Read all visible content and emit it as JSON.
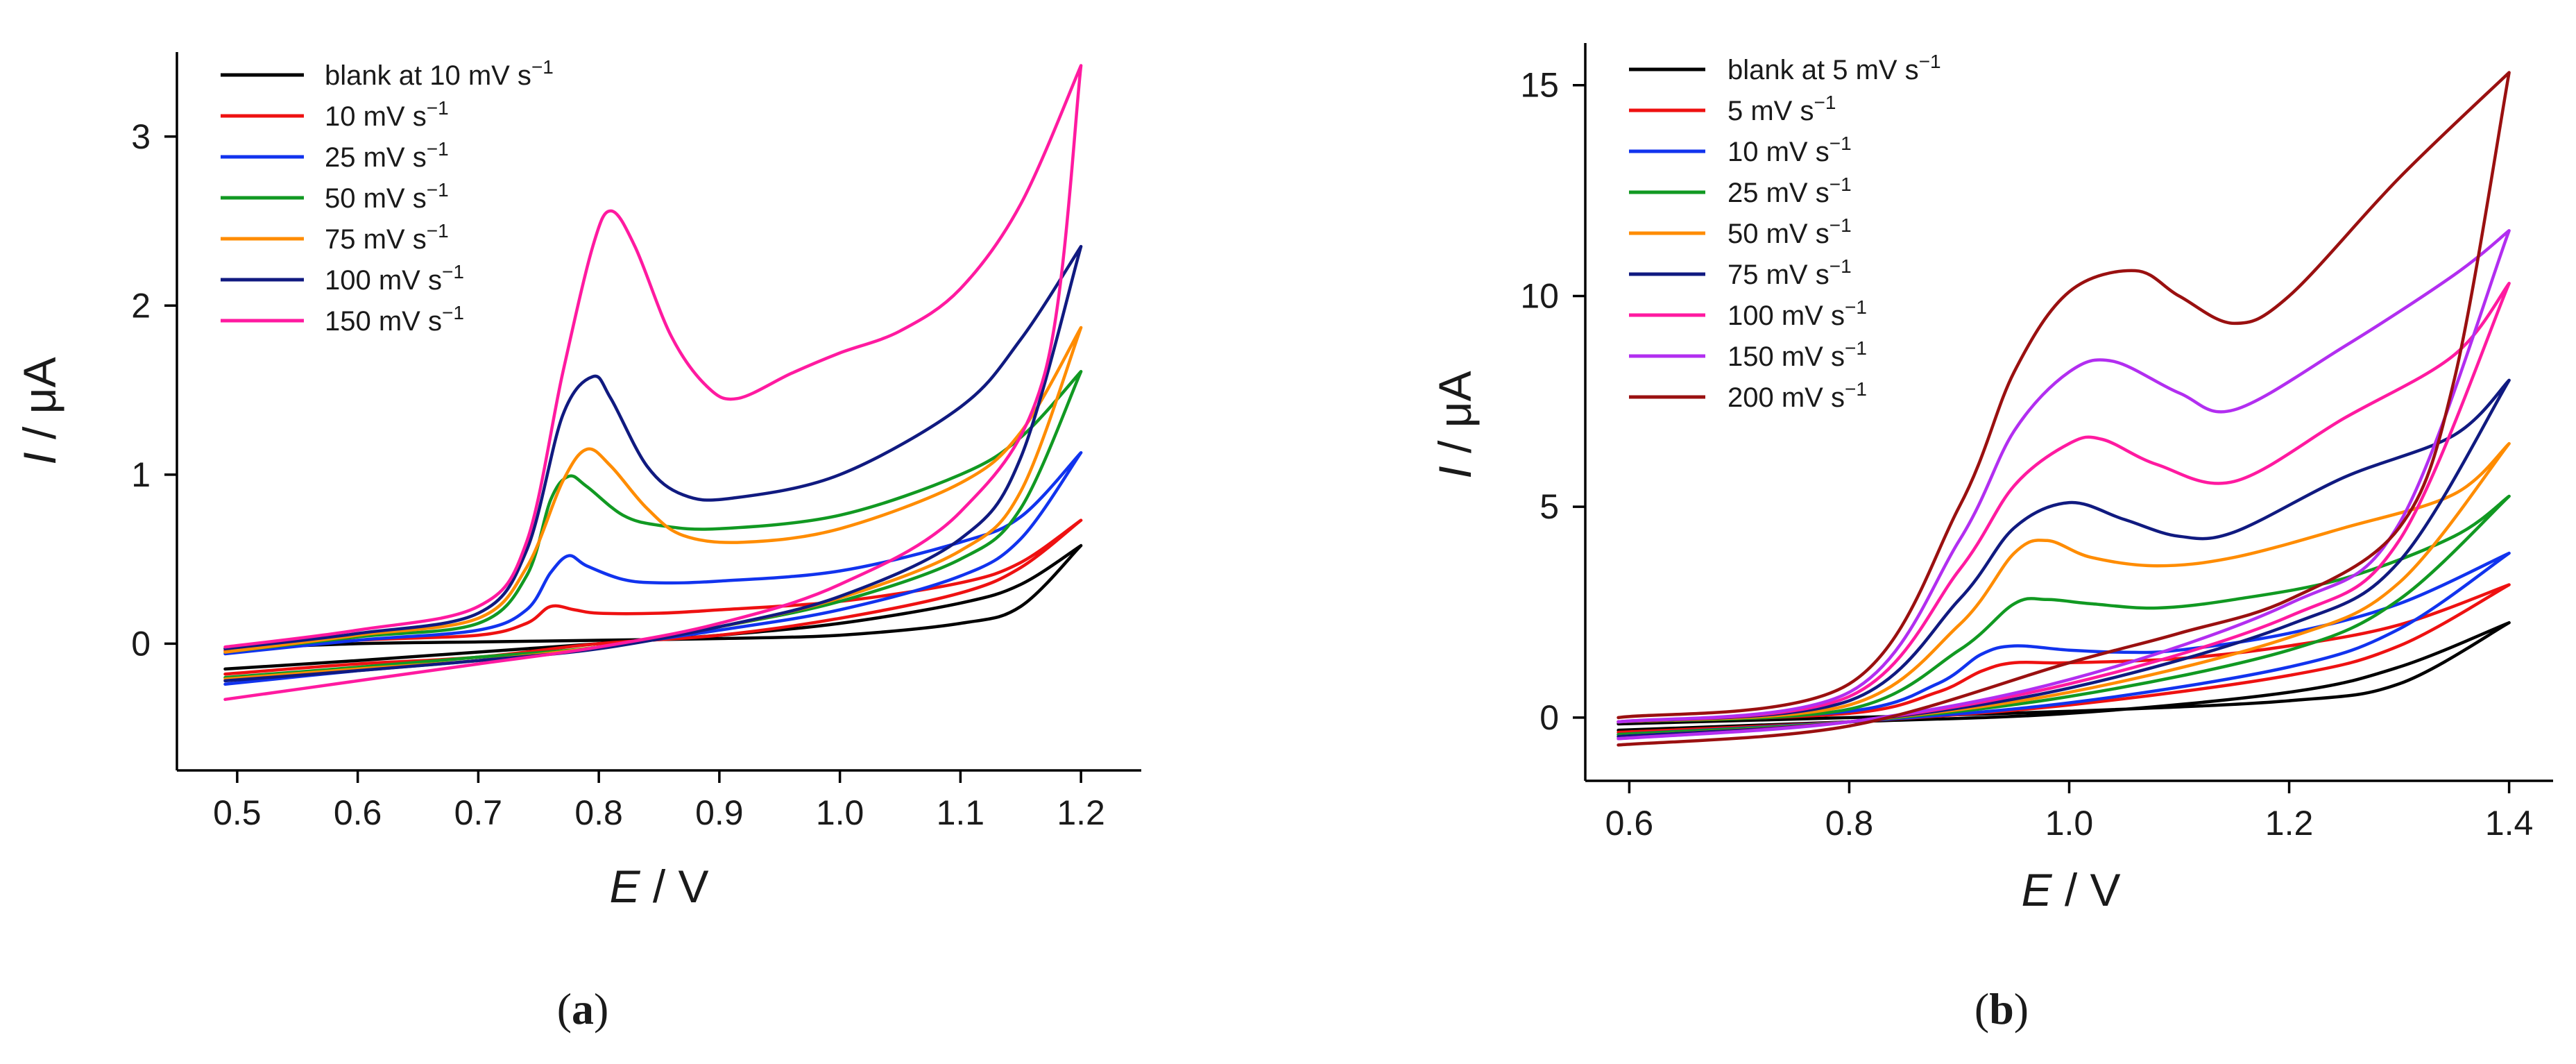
{
  "chart_data": [
    {
      "type": "line",
      "panel": "a",
      "panel_label": "a",
      "xlabel": "E",
      "xunit": "V",
      "ylabel": "I",
      "yunit": "μA",
      "xlim": [
        0.45,
        1.25
      ],
      "ylim": [
        -0.75,
        3.5
      ],
      "xticks": [
        0.5,
        0.6,
        0.7,
        0.8,
        0.9,
        1.0,
        1.1,
        1.2
      ],
      "xtick_labels": [
        "0.5",
        "0.6",
        "0.7",
        "0.8",
        "0.9",
        "1.0",
        "1.1",
        "1.2"
      ],
      "yticks": [
        0,
        1,
        2,
        3
      ],
      "ytick_labels": [
        "0",
        "1",
        "2",
        "3"
      ],
      "legend_position": "top-left",
      "series": [
        {
          "name": "blank at 10 mV s−1",
          "label_main": "blank at 10 mV s",
          "label_sup": "−1",
          "color": "#000000",
          "forward_x": [
            0.49,
            0.6,
            0.7,
            0.8,
            0.9,
            1.0,
            1.1,
            1.15,
            1.2
          ],
          "forward_y": [
            -0.03,
            0.0,
            0.01,
            0.02,
            0.03,
            0.05,
            0.12,
            0.22,
            0.58
          ],
          "reverse_x": [
            1.2,
            1.15,
            1.1,
            1.0,
            0.9,
            0.8,
            0.7,
            0.6,
            0.49
          ],
          "reverse_y": [
            0.58,
            0.35,
            0.24,
            0.12,
            0.05,
            0.0,
            -0.05,
            -0.1,
            -0.15
          ]
        },
        {
          "name": "10 mV s−1",
          "label_main": "10 mV s",
          "label_sup": "−1",
          "color": "#ee1111",
          "forward_x": [
            0.49,
            0.6,
            0.7,
            0.74,
            0.76,
            0.78,
            0.8,
            0.85,
            0.9,
            1.0,
            1.1,
            1.15,
            1.2
          ],
          "forward_y": [
            -0.04,
            0.02,
            0.05,
            0.12,
            0.22,
            0.2,
            0.18,
            0.18,
            0.2,
            0.25,
            0.36,
            0.48,
            0.73
          ],
          "reverse_x": [
            1.2,
            1.15,
            1.1,
            1.0,
            0.9,
            0.8,
            0.7,
            0.6,
            0.49
          ],
          "reverse_y": [
            0.73,
            0.45,
            0.3,
            0.15,
            0.05,
            0.0,
            -0.08,
            -0.12,
            -0.18
          ]
        },
        {
          "name": "25 mV s−1",
          "label_main": "25 mV s",
          "label_sup": "−1",
          "color": "#1133ee",
          "forward_x": [
            0.49,
            0.6,
            0.7,
            0.74,
            0.76,
            0.775,
            0.79,
            0.82,
            0.85,
            0.9,
            1.0,
            1.1,
            1.15,
            1.2
          ],
          "forward_y": [
            -0.06,
            0.02,
            0.08,
            0.2,
            0.42,
            0.52,
            0.46,
            0.38,
            0.36,
            0.37,
            0.43,
            0.6,
            0.75,
            1.13
          ],
          "reverse_x": [
            1.2,
            1.15,
            1.1,
            1.0,
            0.9,
            0.8,
            0.7,
            0.6,
            0.49
          ],
          "reverse_y": [
            1.13,
            0.62,
            0.4,
            0.2,
            0.08,
            -0.02,
            -0.1,
            -0.16,
            -0.24
          ]
        },
        {
          "name": "50 mV s−1",
          "label_main": "50 mV s",
          "label_sup": "−1",
          "color": "#119922",
          "forward_x": [
            0.49,
            0.6,
            0.7,
            0.74,
            0.76,
            0.775,
            0.79,
            0.82,
            0.85,
            0.9,
            1.0,
            1.1,
            1.15,
            1.2
          ],
          "forward_y": [
            -0.05,
            0.04,
            0.12,
            0.4,
            0.85,
            0.99,
            0.93,
            0.76,
            0.7,
            0.68,
            0.76,
            1.0,
            1.22,
            1.61
          ],
          "reverse_x": [
            1.2,
            1.15,
            1.1,
            1.0,
            0.9,
            0.8,
            0.7,
            0.6,
            0.49
          ],
          "reverse_y": [
            1.61,
            0.8,
            0.5,
            0.25,
            0.1,
            -0.02,
            -0.08,
            -0.14,
            -0.2
          ]
        },
        {
          "name": "75 mV s−1",
          "label_main": "75 mV s",
          "label_sup": "−1",
          "color": "#ff8c00",
          "forward_x": [
            0.49,
            0.6,
            0.7,
            0.74,
            0.77,
            0.79,
            0.81,
            0.84,
            0.87,
            0.92,
            1.0,
            1.1,
            1.15,
            1.2
          ],
          "forward_y": [
            -0.05,
            0.05,
            0.15,
            0.45,
            0.96,
            1.15,
            1.05,
            0.8,
            0.64,
            0.6,
            0.68,
            0.95,
            1.25,
            1.87
          ],
          "reverse_x": [
            1.2,
            1.15,
            1.1,
            1.0,
            0.9,
            0.8,
            0.7,
            0.6,
            0.49
          ],
          "reverse_y": [
            1.87,
            0.9,
            0.55,
            0.27,
            0.1,
            -0.02,
            -0.1,
            -0.15,
            -0.21
          ]
        },
        {
          "name": "100 mV s−1",
          "label_main": "100 mV s",
          "label_sup": "−1",
          "color": "#101a80",
          "forward_x": [
            0.49,
            0.6,
            0.7,
            0.74,
            0.77,
            0.795,
            0.81,
            0.84,
            0.87,
            0.91,
            1.0,
            1.1,
            1.15,
            1.2
          ],
          "forward_y": [
            -0.03,
            0.06,
            0.18,
            0.55,
            1.35,
            1.58,
            1.45,
            1.05,
            0.88,
            0.86,
            1.0,
            1.4,
            1.8,
            2.35
          ],
          "reverse_x": [
            1.2,
            1.15,
            1.1,
            1.0,
            0.9,
            0.8,
            0.7,
            0.6,
            0.49
          ],
          "reverse_y": [
            2.35,
            1.1,
            0.62,
            0.28,
            0.1,
            -0.03,
            -0.1,
            -0.16,
            -0.22
          ]
        },
        {
          "name": "150 mV s−1",
          "label_main": "150 mV s",
          "label_sup": "−1",
          "color": "#ff1aa0",
          "forward_x": [
            0.49,
            0.6,
            0.7,
            0.74,
            0.77,
            0.795,
            0.81,
            0.83,
            0.86,
            0.89,
            0.915,
            0.96,
            1.0,
            1.05,
            1.1,
            1.15,
            1.2
          ],
          "forward_y": [
            -0.02,
            0.08,
            0.22,
            0.6,
            1.6,
            2.35,
            2.56,
            2.35,
            1.82,
            1.52,
            1.45,
            1.6,
            1.72,
            1.85,
            2.1,
            2.6,
            3.42
          ],
          "reverse_x": [
            1.2,
            1.17,
            1.1,
            1.0,
            0.9,
            0.8,
            0.7,
            0.6,
            0.49
          ],
          "reverse_y": [
            3.42,
            1.6,
            0.78,
            0.35,
            0.12,
            -0.02,
            -0.12,
            -0.22,
            -0.33
          ]
        }
      ]
    },
    {
      "type": "line",
      "panel": "b",
      "panel_label": "b",
      "xlabel": "E",
      "xunit": "V",
      "ylabel": "I",
      "yunit": "μA",
      "xlim": [
        0.56,
        1.44
      ],
      "ylim": [
        -1.5,
        16
      ],
      "xticks": [
        0.6,
        0.8,
        1.0,
        1.2,
        1.4
      ],
      "xtick_labels": [
        "0.6",
        "0.8",
        "1.0",
        "1.2",
        "1.4"
      ],
      "yticks": [
        0,
        5,
        10,
        15
      ],
      "ytick_labels": [
        "0",
        "5",
        "10",
        "15"
      ],
      "legend_position": "top-left",
      "series": [
        {
          "name": "blank at 5 mV s−1",
          "label_main": "blank at 5 mV s",
          "label_sup": "−1",
          "color": "#000000",
          "forward_x": [
            0.59,
            0.8,
            1.0,
            1.2,
            1.3,
            1.4
          ],
          "forward_y": [
            -0.15,
            0.0,
            0.15,
            0.4,
            0.8,
            2.25
          ],
          "reverse_x": [
            1.4,
            1.3,
            1.2,
            1.0,
            0.8,
            0.59
          ],
          "reverse_y": [
            2.25,
            1.2,
            0.6,
            0.1,
            -0.1,
            -0.3
          ]
        },
        {
          "name": "5 mV s−1",
          "label_main": "5 mV s",
          "label_sup": "−1",
          "color": "#ee1111",
          "forward_x": [
            0.59,
            0.8,
            0.88,
            0.92,
            0.95,
            1.0,
            1.1,
            1.2,
            1.3,
            1.4
          ],
          "forward_y": [
            -0.1,
            0.1,
            0.6,
            1.1,
            1.3,
            1.3,
            1.4,
            1.7,
            2.2,
            3.15
          ],
          "reverse_x": [
            1.4,
            1.3,
            1.2,
            1.0,
            0.8,
            0.59
          ],
          "reverse_y": [
            3.15,
            1.7,
            1.0,
            0.3,
            -0.1,
            -0.35
          ]
        },
        {
          "name": "10 mV s−1",
          "label_main": "10 mV s",
          "label_sup": "−1",
          "color": "#1133ee",
          "forward_x": [
            0.59,
            0.8,
            0.88,
            0.92,
            0.95,
            1.0,
            1.05,
            1.1,
            1.2,
            1.3,
            1.4
          ],
          "forward_y": [
            -0.1,
            0.15,
            0.8,
            1.5,
            1.7,
            1.6,
            1.55,
            1.6,
            2.0,
            2.7,
            3.9
          ],
          "reverse_x": [
            1.4,
            1.3,
            1.2,
            1.0,
            0.8,
            0.59
          ],
          "reverse_y": [
            3.9,
            2.1,
            1.2,
            0.35,
            -0.1,
            -0.4
          ]
        },
        {
          "name": "25 mV s−1",
          "label_main": "25 mV s",
          "label_sup": "−1",
          "color": "#119922",
          "forward_x": [
            0.59,
            0.8,
            0.9,
            0.95,
            0.98,
            1.02,
            1.08,
            1.15,
            1.25,
            1.35,
            1.4
          ],
          "forward_y": [
            -0.1,
            0.2,
            1.6,
            2.7,
            2.8,
            2.7,
            2.6,
            2.8,
            3.3,
            4.3,
            5.25
          ],
          "reverse_x": [
            1.4,
            1.3,
            1.2,
            1.0,
            0.8,
            0.59
          ],
          "reverse_y": [
            5.25,
            2.8,
            1.6,
            0.5,
            -0.1,
            -0.4
          ]
        },
        {
          "name": "50 mV s−1",
          "label_main": "50 mV s",
          "label_sup": "−1",
          "color": "#ff8c00",
          "forward_x": [
            0.59,
            0.8,
            0.9,
            0.95,
            0.98,
            1.02,
            1.08,
            1.15,
            1.25,
            1.35,
            1.4
          ],
          "forward_y": [
            -0.1,
            0.3,
            2.2,
            3.9,
            4.2,
            3.8,
            3.6,
            3.8,
            4.5,
            5.3,
            6.5
          ],
          "reverse_x": [
            1.4,
            1.3,
            1.2,
            1.0,
            0.8,
            0.59
          ],
          "reverse_y": [
            6.5,
            3.2,
            1.9,
            0.6,
            -0.1,
            -0.45
          ]
        },
        {
          "name": "75 mV s−1",
          "label_main": "75 mV s",
          "label_sup": "−1",
          "color": "#101a80",
          "forward_x": [
            0.59,
            0.8,
            0.9,
            0.95,
            1.0,
            1.05,
            1.1,
            1.15,
            1.25,
            1.35,
            1.4
          ],
          "forward_y": [
            -0.1,
            0.4,
            2.8,
            4.5,
            5.1,
            4.7,
            4.3,
            4.4,
            5.7,
            6.7,
            8.0
          ],
          "reverse_x": [
            1.4,
            1.3,
            1.2,
            1.0,
            0.8,
            0.59
          ],
          "reverse_y": [
            8.0,
            3.7,
            2.2,
            0.7,
            -0.1,
            -0.45
          ]
        },
        {
          "name": "100 mV s−1",
          "label_main": "100 mV s",
          "label_sup": "−1",
          "color": "#ff1aa0",
          "forward_x": [
            0.59,
            0.8,
            0.9,
            0.95,
            1.0,
            1.03,
            1.08,
            1.15,
            1.25,
            1.35,
            1.4
          ],
          "forward_y": [
            -0.1,
            0.5,
            3.5,
            5.5,
            6.5,
            6.6,
            6.0,
            5.6,
            7.1,
            8.6,
            10.3
          ],
          "reverse_x": [
            1.4,
            1.3,
            1.2,
            1.0,
            0.8,
            0.59
          ],
          "reverse_y": [
            10.3,
            4.2,
            2.4,
            0.8,
            -0.1,
            -0.5
          ]
        },
        {
          "name": "150 mV s−1",
          "label_main": "150 mV s",
          "label_sup": "−1",
          "color": "#b22ef0",
          "forward_x": [
            0.59,
            0.8,
            0.9,
            0.95,
            1.0,
            1.04,
            1.1,
            1.15,
            1.25,
            1.35,
            1.4
          ],
          "forward_y": [
            -0.1,
            0.6,
            4.2,
            6.8,
            8.2,
            8.45,
            7.7,
            7.3,
            8.8,
            10.5,
            11.55
          ],
          "reverse_x": [
            1.4,
            1.3,
            1.2,
            1.0,
            0.8,
            0.59
          ],
          "reverse_y": [
            11.55,
            4.6,
            2.7,
            0.9,
            -0.1,
            -0.5
          ]
        },
        {
          "name": "200 mV s−1",
          "label_main": "200 mV s",
          "label_sup": "−1",
          "color": "#9a1010",
          "forward_x": [
            0.59,
            0.8,
            0.9,
            0.95,
            1.0,
            1.06,
            1.1,
            1.15,
            1.2,
            1.3,
            1.4
          ],
          "forward_y": [
            0.0,
            0.8,
            5.0,
            8.2,
            10.1,
            10.6,
            10.0,
            9.35,
            10.0,
            12.8,
            15.3
          ],
          "reverse_x": [
            1.4,
            1.35,
            1.3,
            1.2,
            1.1,
            1.0,
            0.8,
            0.59
          ],
          "reverse_y": [
            15.3,
            8.0,
            4.5,
            2.8,
            2.0,
            1.3,
            -0.2,
            -0.65
          ]
        }
      ]
    }
  ]
}
